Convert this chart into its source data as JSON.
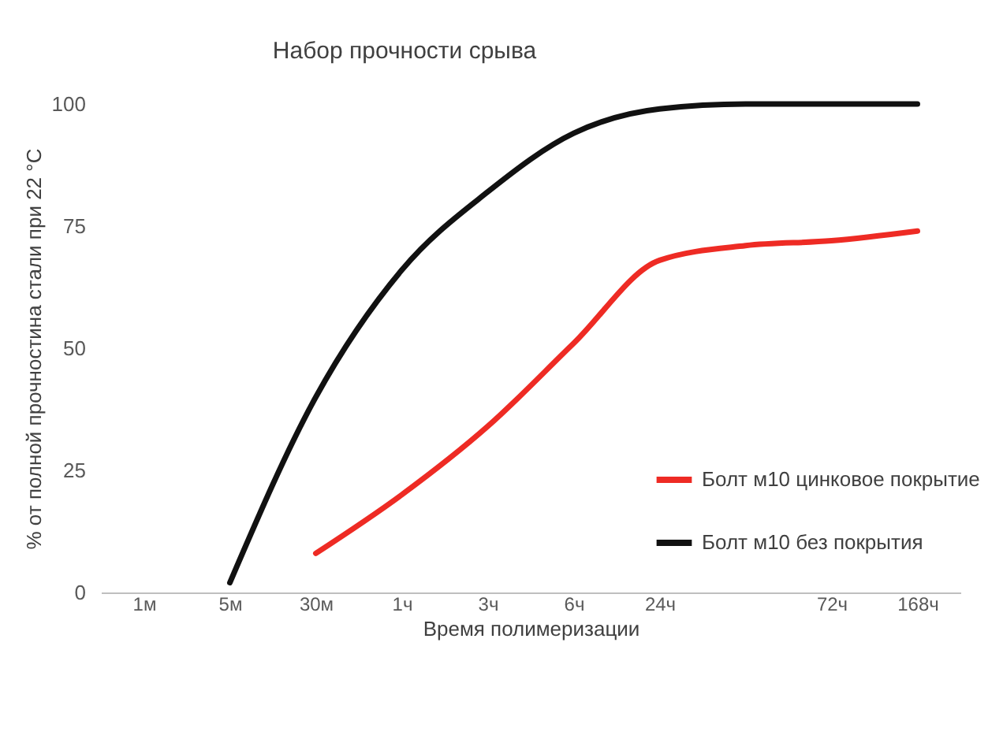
{
  "chart_data": {
    "type": "line",
    "title": "Набор прочности срыва",
    "xlabel": "Время полимеризации",
    "ylabel": "% от полной прочностина стали при 22 °С",
    "categories": [
      "1м",
      "5м",
      "30м",
      "1ч",
      "3ч",
      "6ч",
      "24ч",
      null,
      "72ч",
      "168ч"
    ],
    "series": [
      {
        "name": "Болт м10 цинковое покрытие",
        "color": "#ee2b24",
        "values": [
          null,
          null,
          8,
          20,
          34,
          51,
          68,
          71,
          72,
          74
        ]
      },
      {
        "name": "Болт м10 без покрытия",
        "color": "#111111",
        "values": [
          null,
          2,
          40,
          66,
          82,
          94,
          99,
          100,
          100,
          100
        ]
      }
    ],
    "ylim": [
      0,
      100
    ],
    "yticks": [
      0,
      25,
      50,
      75,
      100
    ],
    "grid": false,
    "legend": "right",
    "marker": "none",
    "line_style": "solid"
  }
}
